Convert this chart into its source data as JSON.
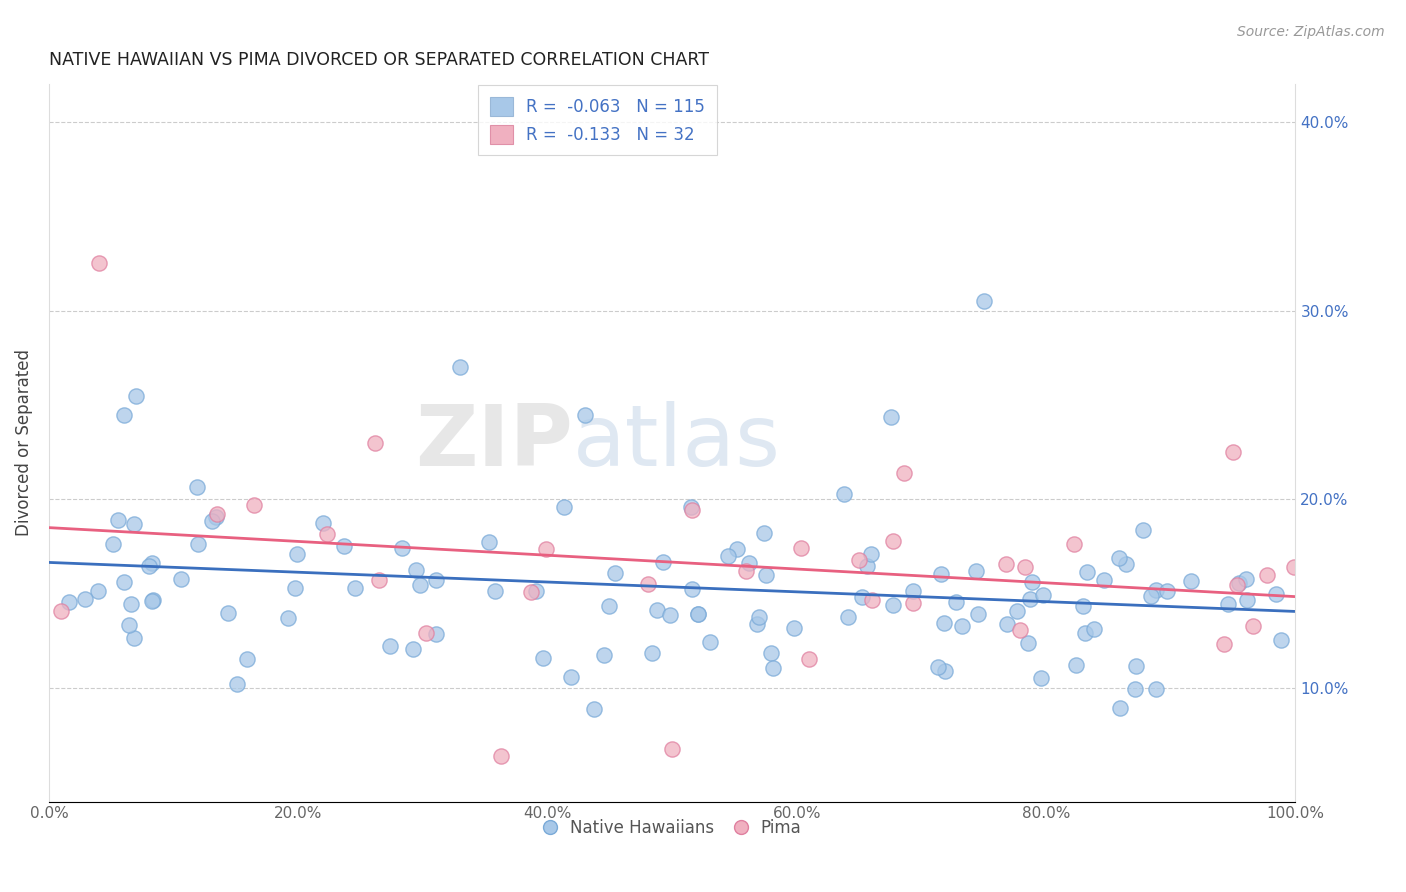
{
  "title": "NATIVE HAWAIIAN VS PIMA DIVORCED OR SEPARATED CORRELATION CHART",
  "source": "Source: ZipAtlas.com",
  "ylabel": "Divorced or Separated",
  "xlim": [
    0.0,
    1.0
  ],
  "ylim": [
    0.04,
    0.42
  ],
  "x_ticks": [
    0.0,
    0.2,
    0.4,
    0.6,
    0.8,
    1.0
  ],
  "x_tick_labels": [
    "0.0%",
    "20.0%",
    "40.0%",
    "60.0%",
    "80.0%",
    "100.0%"
  ],
  "y_ticks": [
    0.1,
    0.2,
    0.3,
    0.4
  ],
  "y_tick_labels": [
    "10.0%",
    "20.0%",
    "30.0%",
    "40.0%"
  ],
  "legend_labels": [
    "Native Hawaiians",
    "Pima"
  ],
  "blue_color": "#a8c8e8",
  "pink_color": "#f0b0c0",
  "blue_line_color": "#3a6fbe",
  "pink_line_color": "#e86080",
  "R_blue": -0.063,
  "N_blue": 115,
  "R_pink": -0.133,
  "N_pink": 32,
  "seed": 17
}
